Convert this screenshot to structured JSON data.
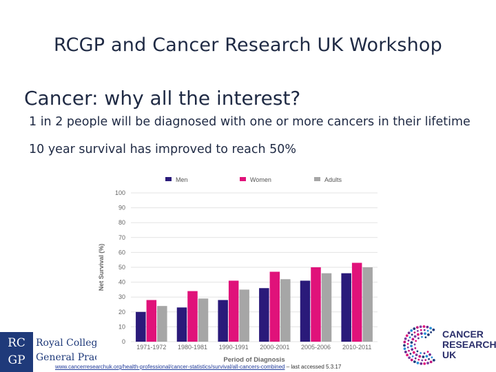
{
  "slide": {
    "title": "RCGP and Cancer Research UK Workshop",
    "heading": "Cancer: why all the interest?",
    "bullets": [
      "1 in 2 people will be diagnosed with one or more cancers in their lifetime",
      "10 year survival has improved to reach 50%"
    ]
  },
  "logos": {
    "rcgp_letters": [
      "RC",
      "GP"
    ],
    "rcgp_lines": [
      "Royal College of",
      "General Practitioners"
    ],
    "cruk_lines": [
      "CANCER",
      "RESEARCH",
      "UK"
    ]
  },
  "footer": {
    "link_text": "www.cancerresearchuk.org/health-professional/cancer-statistics/survival/all-cancers-combined",
    "suffix": " – last accessed 5.3.17"
  },
  "chart_data": {
    "type": "bar",
    "categories": [
      "1971-1972",
      "1980-1981",
      "1990-1991",
      "2000-2001",
      "2005-2006",
      "2010-2011"
    ],
    "series": [
      {
        "name": "Men",
        "color": "#2a1a7a",
        "values": [
          20,
          23,
          28,
          36,
          41,
          46
        ]
      },
      {
        "name": "Women",
        "color": "#e0127a",
        "values": [
          28,
          34,
          41,
          47,
          50,
          53
        ]
      },
      {
        "name": "Adults",
        "color": "#a6a6a6",
        "values": [
          24,
          29,
          35,
          42,
          46,
          50
        ]
      }
    ],
    "xlabel": "Period of Diagnosis",
    "ylabel": "Net Survival (%)",
    "ylim": [
      0,
      100
    ],
    "yticks": [
      0,
      10,
      20,
      30,
      40,
      50,
      60,
      70,
      80,
      90,
      100
    ],
    "grid": true,
    "legend": "top"
  }
}
